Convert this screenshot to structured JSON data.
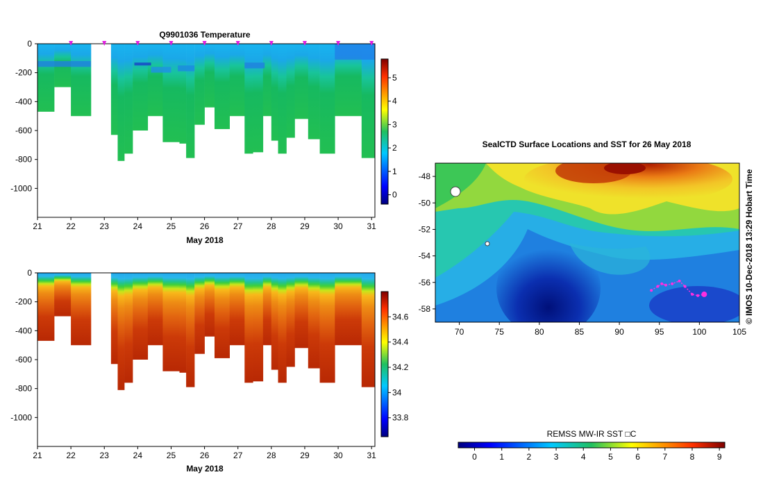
{
  "charts": [
    {
      "type": "heatmap",
      "id": "temperature",
      "title": "Q9901036  Temperature",
      "xlabel": "May 2018",
      "ylabel": "",
      "x_ticks": [
        "21",
        "22",
        "23",
        "24",
        "25",
        "26",
        "27",
        "28",
        "29",
        "30",
        "31"
      ],
      "y_ticks": [
        "0",
        "-200",
        "-400",
        "-600",
        "-800",
        "-1000"
      ],
      "y_tick_values": [
        0,
        -200,
        -400,
        -600,
        -800,
        -1000
      ],
      "xlim": [
        21,
        31.1
      ],
      "ylim": [
        -1200,
        0
      ],
      "colorbar": {
        "ticks": [
          "0",
          "1",
          "2",
          "3",
          "4",
          "5"
        ],
        "tick_values": [
          0,
          1,
          2,
          3,
          4,
          5
        ],
        "range": [
          -0.4,
          5.8
        ]
      },
      "profile_markers": [
        22,
        23,
        24,
        25,
        26,
        27,
        28,
        29,
        30,
        31
      ],
      "profiles": [
        {
          "t": 21.0,
          "depth": 470
        },
        {
          "t": 21.5,
          "depth": 300
        },
        {
          "t": 22.0,
          "depth": 500
        },
        {
          "t": 22.6,
          "depth": 0
        },
        {
          "t": 23.2,
          "depth": 630
        },
        {
          "t": 23.4,
          "depth": 810
        },
        {
          "t": 23.6,
          "depth": 760
        },
        {
          "t": 23.85,
          "depth": 600
        },
        {
          "t": 24.3,
          "depth": 500
        },
        {
          "t": 24.75,
          "depth": 680
        },
        {
          "t": 25.25,
          "depth": 690
        },
        {
          "t": 25.45,
          "depth": 790
        },
        {
          "t": 25.7,
          "depth": 560
        },
        {
          "t": 26.0,
          "depth": 440
        },
        {
          "t": 26.3,
          "depth": 590
        },
        {
          "t": 26.75,
          "depth": 500
        },
        {
          "t": 27.2,
          "depth": 760
        },
        {
          "t": 27.45,
          "depth": 750
        },
        {
          "t": 27.75,
          "depth": 500
        },
        {
          "t": 28.0,
          "depth": 670
        },
        {
          "t": 28.2,
          "depth": 760
        },
        {
          "t": 28.45,
          "depth": 650
        },
        {
          "t": 28.7,
          "depth": 520
        },
        {
          "t": 29.1,
          "depth": 660
        },
        {
          "t": 29.45,
          "depth": 760
        },
        {
          "t": 29.9,
          "depth": 500
        },
        {
          "t": 30.7,
          "depth": 790
        }
      ]
    },
    {
      "type": "heatmap",
      "id": "salinity",
      "title": "",
      "xlabel": "May 2018",
      "ylabel": "",
      "x_ticks": [
        "21",
        "22",
        "23",
        "24",
        "25",
        "26",
        "27",
        "28",
        "29",
        "30",
        "31"
      ],
      "y_ticks": [
        "0",
        "-200",
        "-400",
        "-600",
        "-800",
        "-1000"
      ],
      "y_tick_values": [
        0,
        -200,
        -400,
        -600,
        -800,
        -1000
      ],
      "xlim": [
        21,
        31.1
      ],
      "ylim": [
        -1200,
        0
      ],
      "colorbar": {
        "ticks": [
          "33.8",
          "34",
          "34.2",
          "34.4",
          "34.6"
        ],
        "tick_values": [
          33.8,
          34.0,
          34.2,
          34.4,
          34.6
        ],
        "range": [
          33.65,
          34.8
        ]
      }
    },
    {
      "type": "heatmap",
      "id": "sst-map",
      "title": "SealCTD Surface Locations and SST for 26 May 2018",
      "xlabel": "",
      "ylabel": "",
      "x_ticks": [
        "70",
        "75",
        "80",
        "85",
        "90",
        "95",
        "100",
        "105"
      ],
      "x_tick_values": [
        70,
        75,
        80,
        85,
        90,
        95,
        100,
        105
      ],
      "y_ticks": [
        "-48",
        "-50",
        "-52",
        "-54",
        "-56",
        "-58"
      ],
      "y_tick_values": [
        -48,
        -50,
        -52,
        -54,
        -56,
        -58
      ],
      "xlim": [
        67,
        105
      ],
      "ylim": [
        -59,
        -47
      ],
      "colorbar": {
        "label": "REMSS MW-IR SST □C",
        "ticks": [
          "0",
          "1",
          "2",
          "3",
          "4",
          "5",
          "6",
          "7",
          "8",
          "9"
        ],
        "tick_values": [
          0,
          1,
          2,
          3,
          4,
          5,
          6,
          7,
          8,
          9
        ],
        "range": [
          -0.6,
          9.2
        ]
      },
      "seal_track": [
        {
          "lon": 94.0,
          "lat": -56.6
        },
        {
          "lon": 94.8,
          "lat": -56.3
        },
        {
          "lon": 95.3,
          "lat": -56.1
        },
        {
          "lon": 95.8,
          "lat": -56.2
        },
        {
          "lon": 96.6,
          "lat": -56.1
        },
        {
          "lon": 97.5,
          "lat": -55.9
        },
        {
          "lon": 98.2,
          "lat": -56.3
        },
        {
          "lon": 99.1,
          "lat": -56.9
        },
        {
          "lon": 99.8,
          "lat": -57.0
        },
        {
          "lon": 100.6,
          "lat": -56.9
        }
      ],
      "latest_position": {
        "lon": 100.6,
        "lat": -56.9
      },
      "stamp": "©  IMOS 10-Dec-2018 13:29 Hobart Time"
    }
  ]
}
